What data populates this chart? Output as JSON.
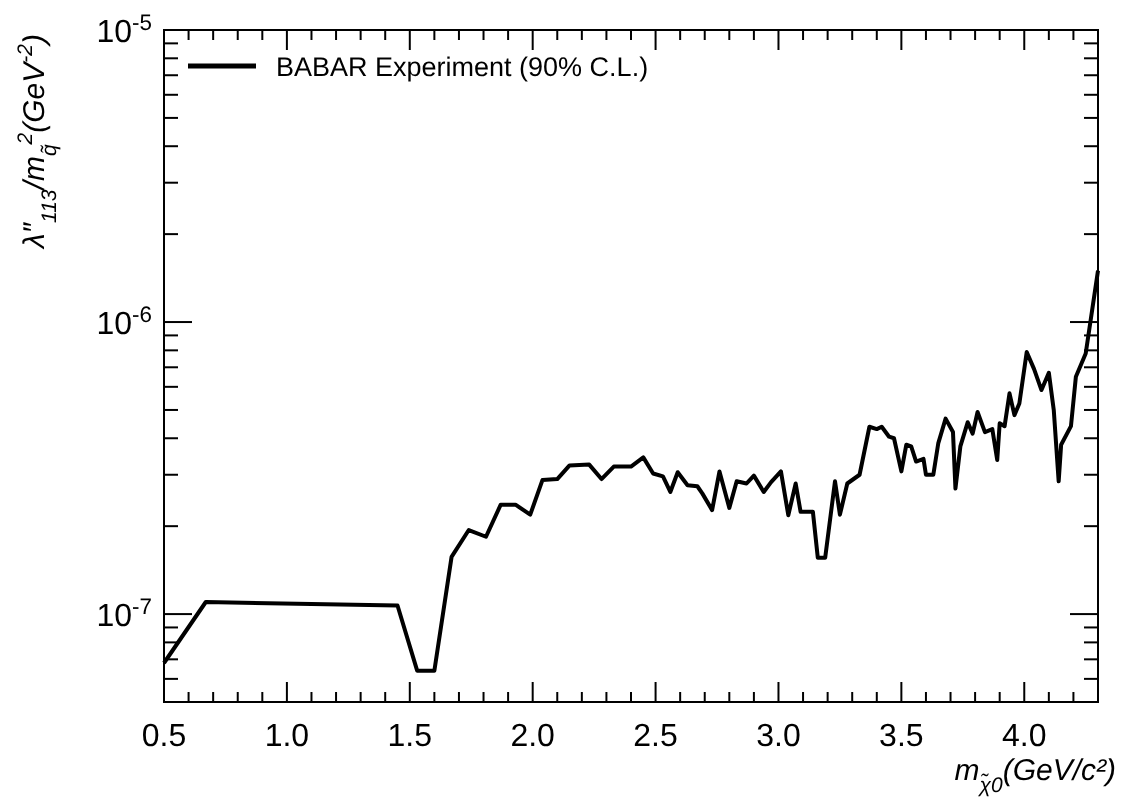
{
  "chart_data": {
    "type": "line",
    "xlabel": "m$_{χ̃0}$(GeV/c²)",
    "ylabel": "λ″$_{113}$/m$_{q̃}$$^{2}$(GeV$^{-2}$)",
    "log": "y",
    "grid": false,
    "legend": "top left",
    "line_style": "solid",
    "marker": "none",
    "xlim": [
      0.5,
      4.3
    ],
    "ylim": [
      5e-08,
      1e-05
    ],
    "xticks": [
      {
        "value": 0.5,
        "label": "0.5"
      },
      {
        "value": 0.6,
        "label": null
      },
      {
        "value": 0.7,
        "label": null
      },
      {
        "value": 0.8,
        "label": null
      },
      {
        "value": 0.9,
        "label": null
      },
      {
        "value": 1,
        "label": "1.0"
      },
      {
        "value": 1.1,
        "label": null
      },
      {
        "value": 1.2,
        "label": null
      },
      {
        "value": 1.3,
        "label": null
      },
      {
        "value": 1.4,
        "label": null
      },
      {
        "value": 1.5,
        "label": "1.5"
      },
      {
        "value": 1.6,
        "label": null
      },
      {
        "value": 1.7,
        "label": null
      },
      {
        "value": 1.8,
        "label": null
      },
      {
        "value": 1.9,
        "label": null
      },
      {
        "value": 2,
        "label": "2.0"
      },
      {
        "value": 2.1,
        "label": null
      },
      {
        "value": 2.2,
        "label": null
      },
      {
        "value": 2.3,
        "label": null
      },
      {
        "value": 2.4,
        "label": null
      },
      {
        "value": 2.5,
        "label": "2.5"
      },
      {
        "value": 2.6,
        "label": null
      },
      {
        "value": 2.7,
        "label": null
      },
      {
        "value": 2.8,
        "label": null
      },
      {
        "value": 2.9,
        "label": null
      },
      {
        "value": 3,
        "label": "3.0"
      },
      {
        "value": 3.1,
        "label": null
      },
      {
        "value": 3.2,
        "label": null
      },
      {
        "value": 3.3,
        "label": null
      },
      {
        "value": 3.4,
        "label": null
      },
      {
        "value": 3.5,
        "label": "3.5"
      },
      {
        "value": 3.6,
        "label": null
      },
      {
        "value": 3.7,
        "label": null
      },
      {
        "value": 3.8,
        "label": null
      },
      {
        "value": 3.9,
        "label": null
      },
      {
        "value": 4,
        "label": "4.0"
      },
      {
        "value": 4.1,
        "label": null
      },
      {
        "value": 4.2,
        "label": null
      }
    ],
    "yticks": [
      {
        "value": 6e-08,
        "label": null
      },
      {
        "value": 7e-08,
        "label": null
      },
      {
        "value": 8e-08,
        "label": null
      },
      {
        "value": 9e-08,
        "label": null
      },
      {
        "value": 1e-07,
        "label": "10$^{-7}$"
      },
      {
        "value": 2e-07,
        "label": null
      },
      {
        "value": 3e-07,
        "label": null
      },
      {
        "value": 4e-07,
        "label": null
      },
      {
        "value": 5e-07,
        "label": null
      },
      {
        "value": 6e-07,
        "label": null
      },
      {
        "value": 7e-07,
        "label": null
      },
      {
        "value": 8e-07,
        "label": null
      },
      {
        "value": 9e-07,
        "label": null
      },
      {
        "value": 1e-06,
        "label": "10$^{-6}$"
      },
      {
        "value": 2e-06,
        "label": null
      },
      {
        "value": 3e-06,
        "label": null
      },
      {
        "value": 4e-06,
        "label": null
      },
      {
        "value": 5e-06,
        "label": null
      },
      {
        "value": 6e-06,
        "label": null
      },
      {
        "value": 7e-06,
        "label": null
      },
      {
        "value": 8e-06,
        "label": null
      },
      {
        "value": 9e-06,
        "label": null
      },
      {
        "value": 1e-05,
        "label": "10$^{-5}$"
      }
    ],
    "series": [
      {
        "name": "BABAR Experiment (90% C.L.)",
        "color": "#000000",
        "x": [
          0.5,
          0.67,
          1.45,
          1.53,
          1.6,
          1.67,
          1.74,
          1.81,
          1.87,
          1.93,
          1.99,
          2.04,
          2.1,
          2.15,
          2.23,
          2.28,
          2.33,
          2.4,
          2.45,
          2.49,
          2.53,
          2.56,
          2.59,
          2.63,
          2.67,
          2.69,
          2.73,
          2.76,
          2.8,
          2.83,
          2.87,
          2.9,
          2.94,
          2.97,
          3.01,
          3.04,
          3.07,
          3.09,
          3.14,
          3.16,
          3.19,
          3.23,
          3.25,
          3.28,
          3.33,
          3.37,
          3.4,
          3.42,
          3.45,
          3.47,
          3.5,
          3.52,
          3.54,
          3.56,
          3.59,
          3.6,
          3.63,
          3.65,
          3.68,
          3.71,
          3.72,
          3.74,
          3.77,
          3.79,
          3.81,
          3.84,
          3.87,
          3.89,
          3.9,
          3.92,
          3.94,
          3.96,
          3.98,
          4.01,
          4.04,
          4.07,
          4.1,
          4.12,
          4.14,
          4.15,
          4.19,
          4.21,
          4.25,
          4.3
        ],
        "values": [
          6.8e-08,
          1.1e-07,
          1.07e-07,
          6.4e-08,
          6.4e-08,
          1.57e-07,
          1.94e-07,
          1.84e-07,
          2.37e-07,
          2.37e-07,
          2.19e-07,
          2.88e-07,
          2.9e-07,
          3.23e-07,
          3.25e-07,
          2.9e-07,
          3.2e-07,
          3.2e-07,
          3.44e-07,
          3.03e-07,
          2.96e-07,
          2.62e-07,
          3.06e-07,
          2.76e-07,
          2.74e-07,
          2.59e-07,
          2.27e-07,
          3.08e-07,
          2.31e-07,
          2.85e-07,
          2.8e-07,
          2.98e-07,
          2.62e-07,
          2.83e-07,
          3.08e-07,
          2.18e-07,
          2.8e-07,
          2.24e-07,
          2.24e-07,
          1.56e-07,
          1.56e-07,
          2.85e-07,
          2.19e-07,
          2.8e-07,
          3e-07,
          4.38e-07,
          4.3e-07,
          4.38e-07,
          4.05e-07,
          4e-07,
          3.08e-07,
          3.8e-07,
          3.75e-07,
          3.33e-07,
          3.4e-07,
          3e-07,
          3e-07,
          3.84e-07,
          4.67e-07,
          4.2e-07,
          2.69e-07,
          3.75e-07,
          4.54e-07,
          4.15e-07,
          4.92e-07,
          4.2e-07,
          4.3e-07,
          3.37e-07,
          4.5e-07,
          4.4e-07,
          5.7e-07,
          4.8e-07,
          5.26e-07,
          7.9e-07,
          6.9e-07,
          5.85e-07,
          6.7e-07,
          5e-07,
          2.85e-07,
          3.8e-07,
          4.4e-07,
          6.5e-07,
          7.8e-07,
          1.5e-06
        ]
      }
    ]
  }
}
